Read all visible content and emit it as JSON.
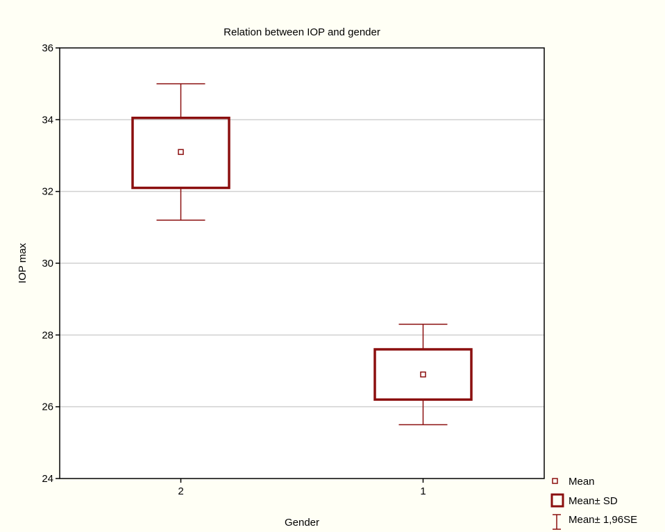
{
  "chart_data": {
    "type": "box",
    "title": "Relation between IOP and gender",
    "xlabel": "Gender",
    "ylabel": "IOP max",
    "ylim": [
      24,
      36
    ],
    "yticks": [
      "24",
      "26",
      "28",
      "30",
      "32",
      "34",
      "36"
    ],
    "grid": true,
    "legend_position": "bottom-right",
    "categories": [
      "2",
      "1"
    ],
    "groups": [
      {
        "category": "2",
        "mean": 33.1,
        "sd_low": 32.1,
        "sd_high": 34.05,
        "se_low": 31.2,
        "se_high": 35.0
      },
      {
        "category": "1",
        "mean": 26.9,
        "sd_low": 26.2,
        "sd_high": 27.6,
        "se_low": 25.5,
        "se_high": 28.3
      }
    ],
    "legend": [
      {
        "symbol": "mean",
        "label": "Mean"
      },
      {
        "symbol": "box",
        "label": "Mean± SD"
      },
      {
        "symbol": "whisker",
        "label": "Mean± 1,96SE"
      }
    ],
    "colors": {
      "accent": "#8b0f0f",
      "grid": "#d0d0d0",
      "background": "#fffff5",
      "plot": "#ffffff"
    }
  }
}
